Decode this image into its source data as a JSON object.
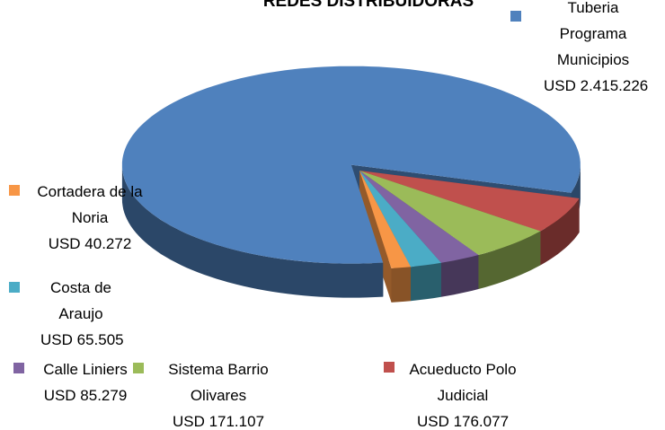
{
  "chart_data": {
    "type": "pie",
    "title": "REDES DISTRIBUIDORAS",
    "categories": [
      "Tuberia Programa Municipios",
      "Acueducto Polo Judicial",
      "Sistema Barrio Olivares",
      "Calle Liniers",
      "Costa de Araujo",
      "Cortadera de la Noria"
    ],
    "values": [
      2415226,
      176077,
      171107,
      85279,
      65505,
      40272
    ],
    "value_labels": [
      "USD 2.415.226",
      "USD 176.077",
      "USD 171.107",
      "USD 85.279",
      "USD 65.505",
      "USD 40.272"
    ],
    "colors": [
      "#4f81bd",
      "#c0504d",
      "#9bbb59",
      "#8064a2",
      "#4bacc6",
      "#f79646"
    ]
  }
}
